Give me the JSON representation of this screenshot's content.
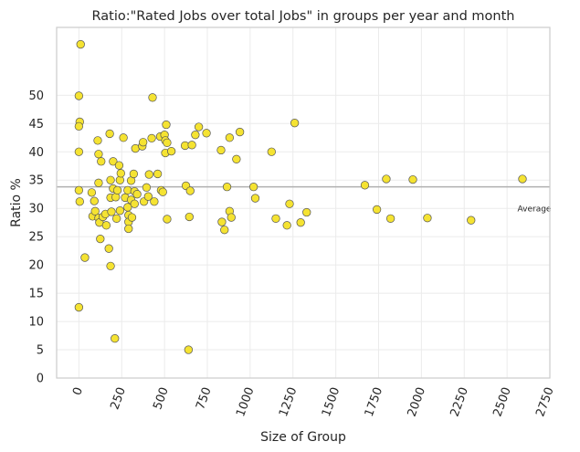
{
  "chart_data": {
    "type": "scatter",
    "title": "Ratio:\"Rated Jobs over total Jobs\" in groups per year and month",
    "xlabel": "Size of Group",
    "ylabel": "Ratio %",
    "xlim": [
      -130,
      2750
    ],
    "ylim": [
      0,
      62
    ],
    "x_ticks": [
      0,
      250,
      500,
      750,
      1000,
      1250,
      1500,
      1750,
      2000,
      2250,
      2500,
      2750
    ],
    "x_tick_labels": [
      "0",
      "250",
      "500",
      "750",
      "1000",
      "1250",
      "1500",
      "1750",
      "2000",
      "2250",
      "2500",
      "2750"
    ],
    "y_ticks": [
      0,
      5,
      10,
      15,
      20,
      25,
      30,
      35,
      40,
      45,
      50
    ],
    "y_tick_labels": [
      "0",
      "5",
      "10",
      "15",
      "20",
      "25",
      "30",
      "35",
      "40",
      "45",
      "50"
    ],
    "x_tick_rotation_deg": 70,
    "grid": true,
    "marker_color": "#f5e332",
    "marker_edge_color": "#555555",
    "reference_line": {
      "y": 33.8,
      "label": "Average",
      "color": "#b0b0b0"
    },
    "points": [
      {
        "x": 10,
        "y": 59
      },
      {
        "x": 0,
        "y": 49.9
      },
      {
        "x": 5,
        "y": 45.3
      },
      {
        "x": 0,
        "y": 44.5
      },
      {
        "x": 0,
        "y": 40
      },
      {
        "x": 0,
        "y": 33.2
      },
      {
        "x": 5,
        "y": 31.2
      },
      {
        "x": 0,
        "y": 12.5
      },
      {
        "x": 35,
        "y": 21.3
      },
      {
        "x": 75,
        "y": 32.8
      },
      {
        "x": 80,
        "y": 28.6
      },
      {
        "x": 90,
        "y": 31.3
      },
      {
        "x": 95,
        "y": 29.5
      },
      {
        "x": 110,
        "y": 42
      },
      {
        "x": 115,
        "y": 39.6
      },
      {
        "x": 115,
        "y": 34.5
      },
      {
        "x": 115,
        "y": 28.3
      },
      {
        "x": 120,
        "y": 27.5
      },
      {
        "x": 125,
        "y": 24.6
      },
      {
        "x": 130,
        "y": 38.3
      },
      {
        "x": 140,
        "y": 28.5
      },
      {
        "x": 155,
        "y": 29
      },
      {
        "x": 160,
        "y": 27
      },
      {
        "x": 175,
        "y": 22.9
      },
      {
        "x": 185,
        "y": 19.8
      },
      {
        "x": 180,
        "y": 43.2
      },
      {
        "x": 185,
        "y": 35
      },
      {
        "x": 185,
        "y": 31.9
      },
      {
        "x": 190,
        "y": 29.4
      },
      {
        "x": 200,
        "y": 38.3
      },
      {
        "x": 200,
        "y": 33.5
      },
      {
        "x": 210,
        "y": 7
      },
      {
        "x": 215,
        "y": 32
      },
      {
        "x": 220,
        "y": 28.2
      },
      {
        "x": 225,
        "y": 33.2
      },
      {
        "x": 235,
        "y": 37.6
      },
      {
        "x": 240,
        "y": 35
      },
      {
        "x": 240,
        "y": 29.6
      },
      {
        "x": 245,
        "y": 36.2
      },
      {
        "x": 260,
        "y": 42.5
      },
      {
        "x": 270,
        "y": 31.9
      },
      {
        "x": 285,
        "y": 33.2
      },
      {
        "x": 285,
        "y": 30.2
      },
      {
        "x": 290,
        "y": 28.8
      },
      {
        "x": 290,
        "y": 27.6
      },
      {
        "x": 290,
        "y": 26.4
      },
      {
        "x": 305,
        "y": 34.9
      },
      {
        "x": 305,
        "y": 31.5
      },
      {
        "x": 310,
        "y": 28.4
      },
      {
        "x": 320,
        "y": 36.1
      },
      {
        "x": 325,
        "y": 30.8
      },
      {
        "x": 325,
        "y": 33
      },
      {
        "x": 330,
        "y": 40.6
      },
      {
        "x": 340,
        "y": 32.5
      },
      {
        "x": 370,
        "y": 41
      },
      {
        "x": 375,
        "y": 41.7
      },
      {
        "x": 380,
        "y": 31.2
      },
      {
        "x": 395,
        "y": 33.7
      },
      {
        "x": 405,
        "y": 32.1
      },
      {
        "x": 410,
        "y": 36
      },
      {
        "x": 425,
        "y": 42.4
      },
      {
        "x": 430,
        "y": 49.6
      },
      {
        "x": 440,
        "y": 31.2
      },
      {
        "x": 460,
        "y": 36.1
      },
      {
        "x": 475,
        "y": 42.7
      },
      {
        "x": 480,
        "y": 33.2
      },
      {
        "x": 490,
        "y": 32.9
      },
      {
        "x": 500,
        "y": 43
      },
      {
        "x": 505,
        "y": 42
      },
      {
        "x": 505,
        "y": 39.8
      },
      {
        "x": 510,
        "y": 44.8
      },
      {
        "x": 515,
        "y": 41.6
      },
      {
        "x": 515,
        "y": 28.1
      },
      {
        "x": 540,
        "y": 40.1
      },
      {
        "x": 620,
        "y": 41.1
      },
      {
        "x": 625,
        "y": 34
      },
      {
        "x": 640,
        "y": 5
      },
      {
        "x": 650,
        "y": 33.1
      },
      {
        "x": 645,
        "y": 28.5
      },
      {
        "x": 660,
        "y": 41.2
      },
      {
        "x": 680,
        "y": 43
      },
      {
        "x": 700,
        "y": 44.4
      },
      {
        "x": 745,
        "y": 43.3
      },
      {
        "x": 830,
        "y": 40.3
      },
      {
        "x": 835,
        "y": 27.6
      },
      {
        "x": 850,
        "y": 26.2
      },
      {
        "x": 865,
        "y": 33.8
      },
      {
        "x": 880,
        "y": 42.5
      },
      {
        "x": 880,
        "y": 29.5
      },
      {
        "x": 890,
        "y": 28.4
      },
      {
        "x": 920,
        "y": 38.7
      },
      {
        "x": 940,
        "y": 43.5
      },
      {
        "x": 1020,
        "y": 33.8
      },
      {
        "x": 1030,
        "y": 31.8
      },
      {
        "x": 1125,
        "y": 40
      },
      {
        "x": 1150,
        "y": 28.2
      },
      {
        "x": 1215,
        "y": 27
      },
      {
        "x": 1230,
        "y": 30.8
      },
      {
        "x": 1260,
        "y": 45.1
      },
      {
        "x": 1295,
        "y": 27.5
      },
      {
        "x": 1330,
        "y": 29.3
      },
      {
        "x": 1670,
        "y": 34.1
      },
      {
        "x": 1740,
        "y": 29.8
      },
      {
        "x": 1795,
        "y": 35.2
      },
      {
        "x": 1820,
        "y": 28.2
      },
      {
        "x": 1950,
        "y": 35.1
      },
      {
        "x": 2035,
        "y": 28.3
      },
      {
        "x": 2290,
        "y": 27.9
      },
      {
        "x": 2590,
        "y": 35.2
      }
    ]
  }
}
